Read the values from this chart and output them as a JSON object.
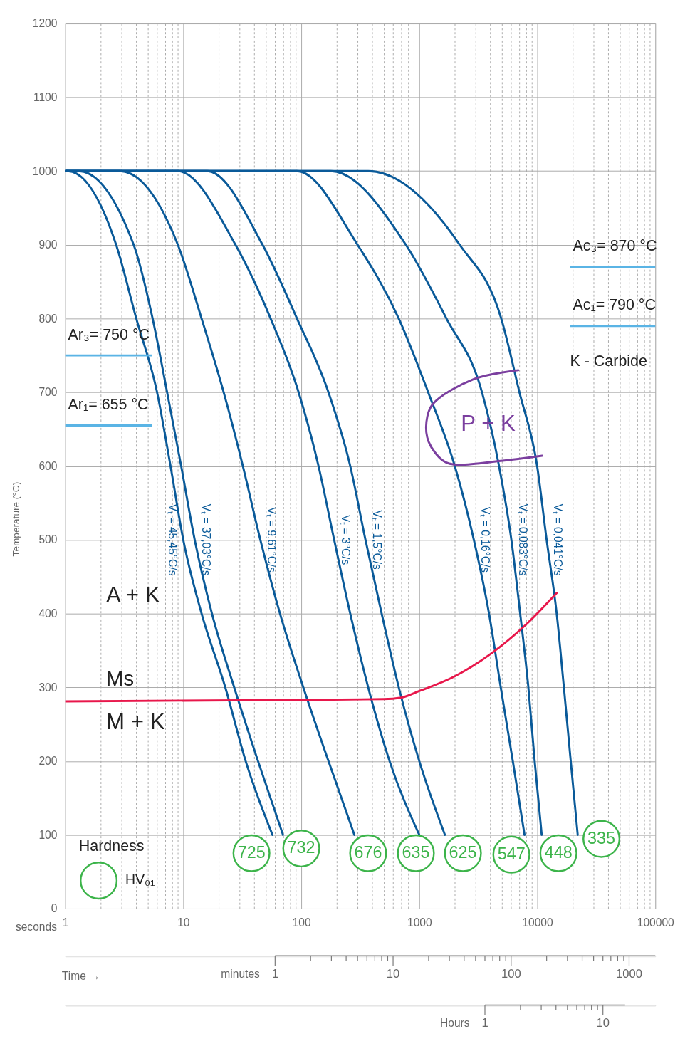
{
  "chart_data": {
    "type": "line",
    "ylabel": "Temperature (°C)",
    "xlabel": "seconds",
    "log": "x",
    "grid": true,
    "legend": false,
    "marker": "none",
    "line_style": "solid",
    "xlim": [
      1,
      100000
    ],
    "ylim": [
      0,
      1200
    ],
    "yticks": [
      0,
      100,
      200,
      300,
      400,
      500,
      600,
      700,
      800,
      900,
      1000,
      1100,
      1200
    ],
    "xticks": [
      1,
      {
        "value": 2,
        "label": null
      },
      {
        "value": 3,
        "label": null
      },
      {
        "value": 4,
        "label": null
      },
      {
        "value": 5,
        "label": null
      },
      {
        "value": 6,
        "label": null
      },
      {
        "value": 7,
        "label": null
      },
      {
        "value": 8,
        "label": null
      },
      {
        "value": 9,
        "label": null
      },
      10,
      {
        "value": 20,
        "label": null
      },
      {
        "value": 30,
        "label": null
      },
      {
        "value": 40,
        "label": null
      },
      {
        "value": 50,
        "label": null
      },
      {
        "value": 60,
        "label": null
      },
      {
        "value": 70,
        "label": null
      },
      {
        "value": 80,
        "label": null
      },
      {
        "value": 90,
        "label": null
      },
      100,
      {
        "value": 200,
        "label": null
      },
      {
        "value": 300,
        "label": null
      },
      {
        "value": 400,
        "label": null
      },
      {
        "value": 500,
        "label": null
      },
      {
        "value": 600,
        "label": null
      },
      {
        "value": 700,
        "label": null
      },
      {
        "value": 800,
        "label": null
      },
      {
        "value": 900,
        "label": null
      },
      1000,
      {
        "value": 2000,
        "label": null
      },
      {
        "value": 3000,
        "label": null
      },
      {
        "value": 4000,
        "label": null
      },
      {
        "value": 5000,
        "label": null
      },
      {
        "value": 6000,
        "label": null
      },
      {
        "value": 7000,
        "label": null
      },
      {
        "value": 8000,
        "label": null
      },
      {
        "value": 9000,
        "label": null
      },
      10000,
      {
        "value": 20000,
        "label": null
      },
      {
        "value": 30000,
        "label": null
      },
      {
        "value": 40000,
        "label": null
      },
      {
        "value": 50000,
        "label": null
      },
      {
        "value": 60000,
        "label": null
      },
      {
        "value": 70000,
        "label": null
      },
      {
        "value": 80000,
        "label": null
      },
      {
        "value": 90000,
        "label": null
      },
      100000
    ],
    "series": [
      {
        "name": "Vₜ = 45,45°C/s",
        "color": "#0a5a99",
        "x": [
          1,
          1.05,
          2.7,
          4,
          6,
          7.8,
          10,
          14.3,
          22.7,
          33.8,
          57
        ],
        "values": [
          1000,
          1000,
          900,
          800,
          700,
          600,
          500,
          400,
          300,
          200,
          100
        ]
      },
      {
        "name": "Vₜ = 37,03°C/s",
        "color": "#0a5a99",
        "x": [
          1,
          1.3,
          3.8,
          5.5,
          7.3,
          9.6,
          12.5,
          17.5,
          27,
          43,
          70
        ],
        "values": [
          1000,
          1000,
          900,
          800,
          700,
          600,
          500,
          400,
          300,
          200,
          100
        ]
      },
      {
        "name": "Vₜ = 9,61°C/s",
        "color": "#0a5a99",
        "x": [
          1,
          2.9,
          9,
          14.3,
          22,
          32,
          45,
          66,
          104,
          170,
          282
        ],
        "values": [
          1000,
          1000,
          900,
          800,
          700,
          600,
          500,
          400,
          300,
          200,
          100
        ]
      },
      {
        "name": "Vₜ = 3°C/s",
        "color": "#0a5a99",
        "x": [
          1,
          9,
          27.7,
          55,
          95,
          140,
          190,
          260,
          369,
          560,
          1000
        ],
        "values": [
          1000,
          1000,
          900,
          800,
          700,
          600,
          500,
          400,
          300,
          200,
          100
        ]
      },
      {
        "name": "Vₜ = 1,5°C/s",
        "color": "#0a5a99",
        "x": [
          1,
          16,
          47,
          92,
          170,
          260,
          350,
          480,
          670,
          1000,
          1650
        ],
        "values": [
          1000,
          1000,
          900,
          800,
          700,
          600,
          500,
          400,
          300,
          200,
          100
        ]
      },
      {
        "name": "Vₜ = 0,16°C/s",
        "color": "#0a5a99",
        "x": [
          1,
          92,
          300,
          670,
          1190,
          2000,
          2900,
          3900,
          4900,
          6200,
          7800
        ],
        "values": [
          1000,
          1000,
          900,
          800,
          700,
          600,
          500,
          400,
          300,
          200,
          100
        ]
      },
      {
        "name": "Vₜ = 0,083°C/s",
        "color": "#0a5a99",
        "x": [
          1,
          178,
          770,
          1700,
          3400,
          4740,
          6030,
          7160,
          8400,
          9500,
          10900
        ],
        "values": [
          1000,
          1000,
          900,
          800,
          700,
          600,
          500,
          400,
          300,
          200,
          100
        ]
      },
      {
        "name": "Vₜ = 0,041°C/s",
        "color": "#0a5a99",
        "x": [
          1,
          370,
          2200,
          4950,
          7060,
          9970,
          12000,
          14600,
          16800,
          19200,
          22000
        ],
        "values": [
          1000,
          1000,
          900,
          800,
          700,
          600,
          500,
          400,
          300,
          200,
          100
        ]
      },
      {
        "name": "Ms",
        "color": "#e8174b",
        "x": [
          1,
          100,
          500,
          700,
          1000,
          2000,
          4000,
          8000,
          14600
        ],
        "values": [
          281,
          283,
          284,
          286,
          295,
          315,
          345,
          385,
          428
        ]
      },
      {
        "name": "P + K",
        "color": "#7b3f9f",
        "x": [
          6900,
          2900,
          1300,
          1150,
          1200,
          1600,
          2050,
          4900,
          11000
        ],
        "values": [
          730,
          718,
          684,
          660,
          633,
          607,
          602,
          607,
          614
        ]
      }
    ],
    "ref_lines": [
      {
        "axis": "y",
        "value": 750,
        "label": "Ar₃= 750 °C",
        "color": "#5ab4e5"
      },
      {
        "axis": "y",
        "value": 655,
        "label": "Ar₁= 655 °C",
        "color": "#5ab4e5"
      },
      {
        "axis": "y",
        "value": 870,
        "label": "Ac₃= 870 °C",
        "color": "#5ab4e5"
      },
      {
        "axis": "y",
        "value": 790,
        "label": "Ac₁= 790 °C",
        "color": "#5ab4e5"
      }
    ],
    "annotations": [
      "A + K",
      "M + K",
      "K - Carbide",
      "Hardness",
      "HV₀₁",
      "Time →",
      "725",
      "732",
      "676",
      "635",
      "625",
      "547",
      "448",
      "335",
      "minutes",
      "1",
      "10",
      "100",
      "1000",
      "Hours",
      "1",
      "10"
    ]
  }
}
